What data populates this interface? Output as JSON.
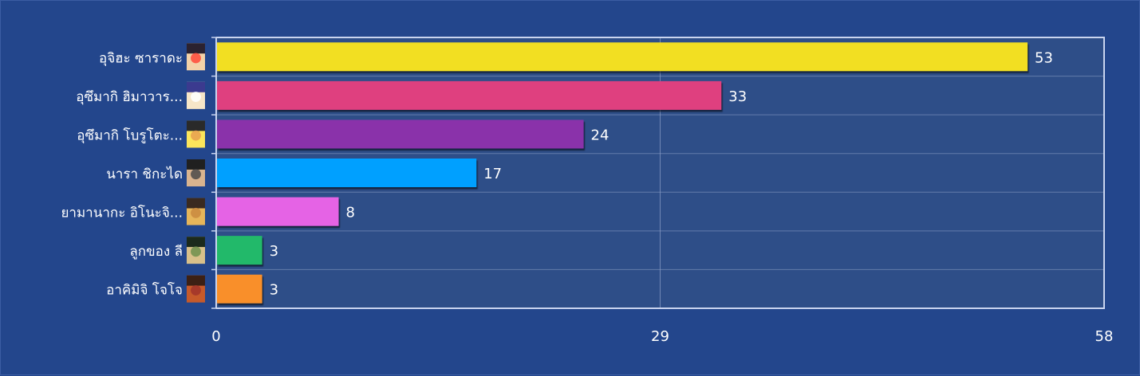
{
  "chart_data": {
    "type": "bar",
    "orientation": "horizontal",
    "title": "",
    "xlabel": "",
    "ylabel": "",
    "xlim": [
      0,
      58
    ],
    "ticks": [
      0,
      29,
      58
    ],
    "grid": true,
    "legend": "none",
    "categories": [
      "อุจิฮะ ซาราดะ",
      "อุซึมากิ ฮิมาวาร...",
      "อุซึมากิ โบรูโตะ...",
      "นารา ชิกะได",
      "ยามานากะ อิโนะจิ...",
      "ลูกของ ลี",
      "อาคิมิจิ โจโจ"
    ],
    "values": [
      53,
      33,
      24,
      17,
      8,
      3,
      3
    ],
    "colors": [
      "#f2df22",
      "#df407f",
      "#8a33aa",
      "#00a0ff",
      "#e564e5",
      "#24b96b",
      "#f98f2c"
    ]
  },
  "avatars": [
    {
      "icon": "avatar-icon",
      "colors": [
        "#f3d2a8",
        "#2b2230",
        "#ff4a3a"
      ]
    },
    {
      "icon": "avatar-icon",
      "colors": [
        "#f6e6c8",
        "#3b3a8f",
        "#ffffff"
      ]
    },
    {
      "icon": "avatar-icon",
      "colors": [
        "#fbe55b",
        "#2a2a2a",
        "#e8a050"
      ]
    },
    {
      "icon": "avatar-icon",
      "colors": [
        "#d9b48f",
        "#202020",
        "#4a4a4a"
      ]
    },
    {
      "icon": "avatar-icon",
      "colors": [
        "#e6b55a",
        "#3a2a20",
        "#c98a40"
      ]
    },
    {
      "icon": "avatar-icon",
      "colors": [
        "#d8c08a",
        "#1c2a1c",
        "#6e8f4c"
      ]
    },
    {
      "icon": "avatar-icon",
      "colors": [
        "#c65a2a",
        "#3c2014",
        "#a0342a"
      ]
    }
  ],
  "style": {
    "background": "#23468c",
    "plot_bg": "#2e4e88",
    "grid": "#8ea0c8",
    "frame": "#c9d4ef",
    "text": "#ffffff"
  }
}
